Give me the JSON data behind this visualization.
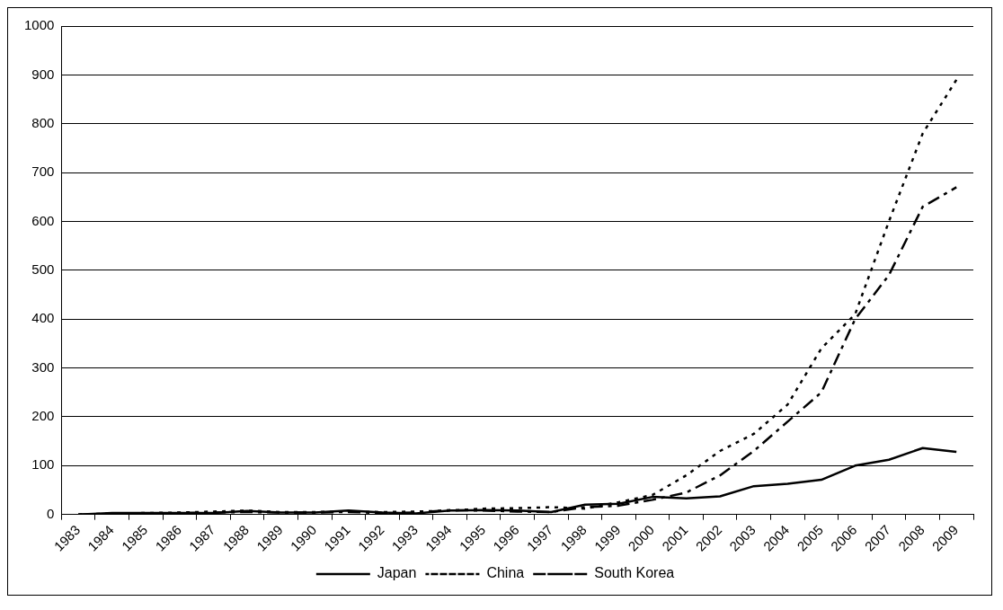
{
  "chart_data": {
    "type": "line",
    "categories": [
      "1983",
      "1984",
      "1985",
      "1986",
      "1987",
      "1988",
      "1989",
      "1990",
      "1991",
      "1992",
      "1993",
      "1994",
      "1995",
      "1996",
      "1997",
      "1998",
      "1999",
      "2000",
      "2001",
      "2002",
      "2003",
      "2004",
      "2005",
      "2006",
      "2007",
      "2008",
      "2009"
    ],
    "series": [
      {
        "name": "Japan",
        "color": "#000000",
        "line_style": "solid",
        "values": [
          0,
          3,
          3,
          3,
          3,
          7,
          4,
          4,
          8,
          4,
          2,
          8,
          9,
          8,
          5,
          20,
          22,
          36,
          33,
          37,
          58,
          63,
          71,
          100,
          112,
          136,
          128
        ]
      },
      {
        "name": "China",
        "color": "#000000",
        "line_style": "dotted",
        "values": [
          0,
          2,
          3,
          4,
          6,
          8,
          5,
          5,
          6,
          5,
          6,
          8,
          12,
          13,
          15,
          12,
          25,
          40,
          80,
          130,
          165,
          225,
          340,
          410,
          600,
          780,
          890
        ]
      },
      {
        "name": "South Korea",
        "color": "#000000",
        "line_style": "dashed",
        "values": [
          0,
          1,
          2,
          3,
          4,
          5,
          4,
          4,
          5,
          3,
          4,
          9,
          8,
          6,
          5,
          15,
          18,
          30,
          45,
          80,
          130,
          190,
          250,
          400,
          490,
          630,
          670
        ]
      }
    ],
    "ylim": [
      0,
      1000
    ],
    "yticks": [
      0,
      100,
      200,
      300,
      400,
      500,
      600,
      700,
      800,
      900,
      1000
    ],
    "grid": "y",
    "legend": "bottom",
    "marker": "none"
  }
}
